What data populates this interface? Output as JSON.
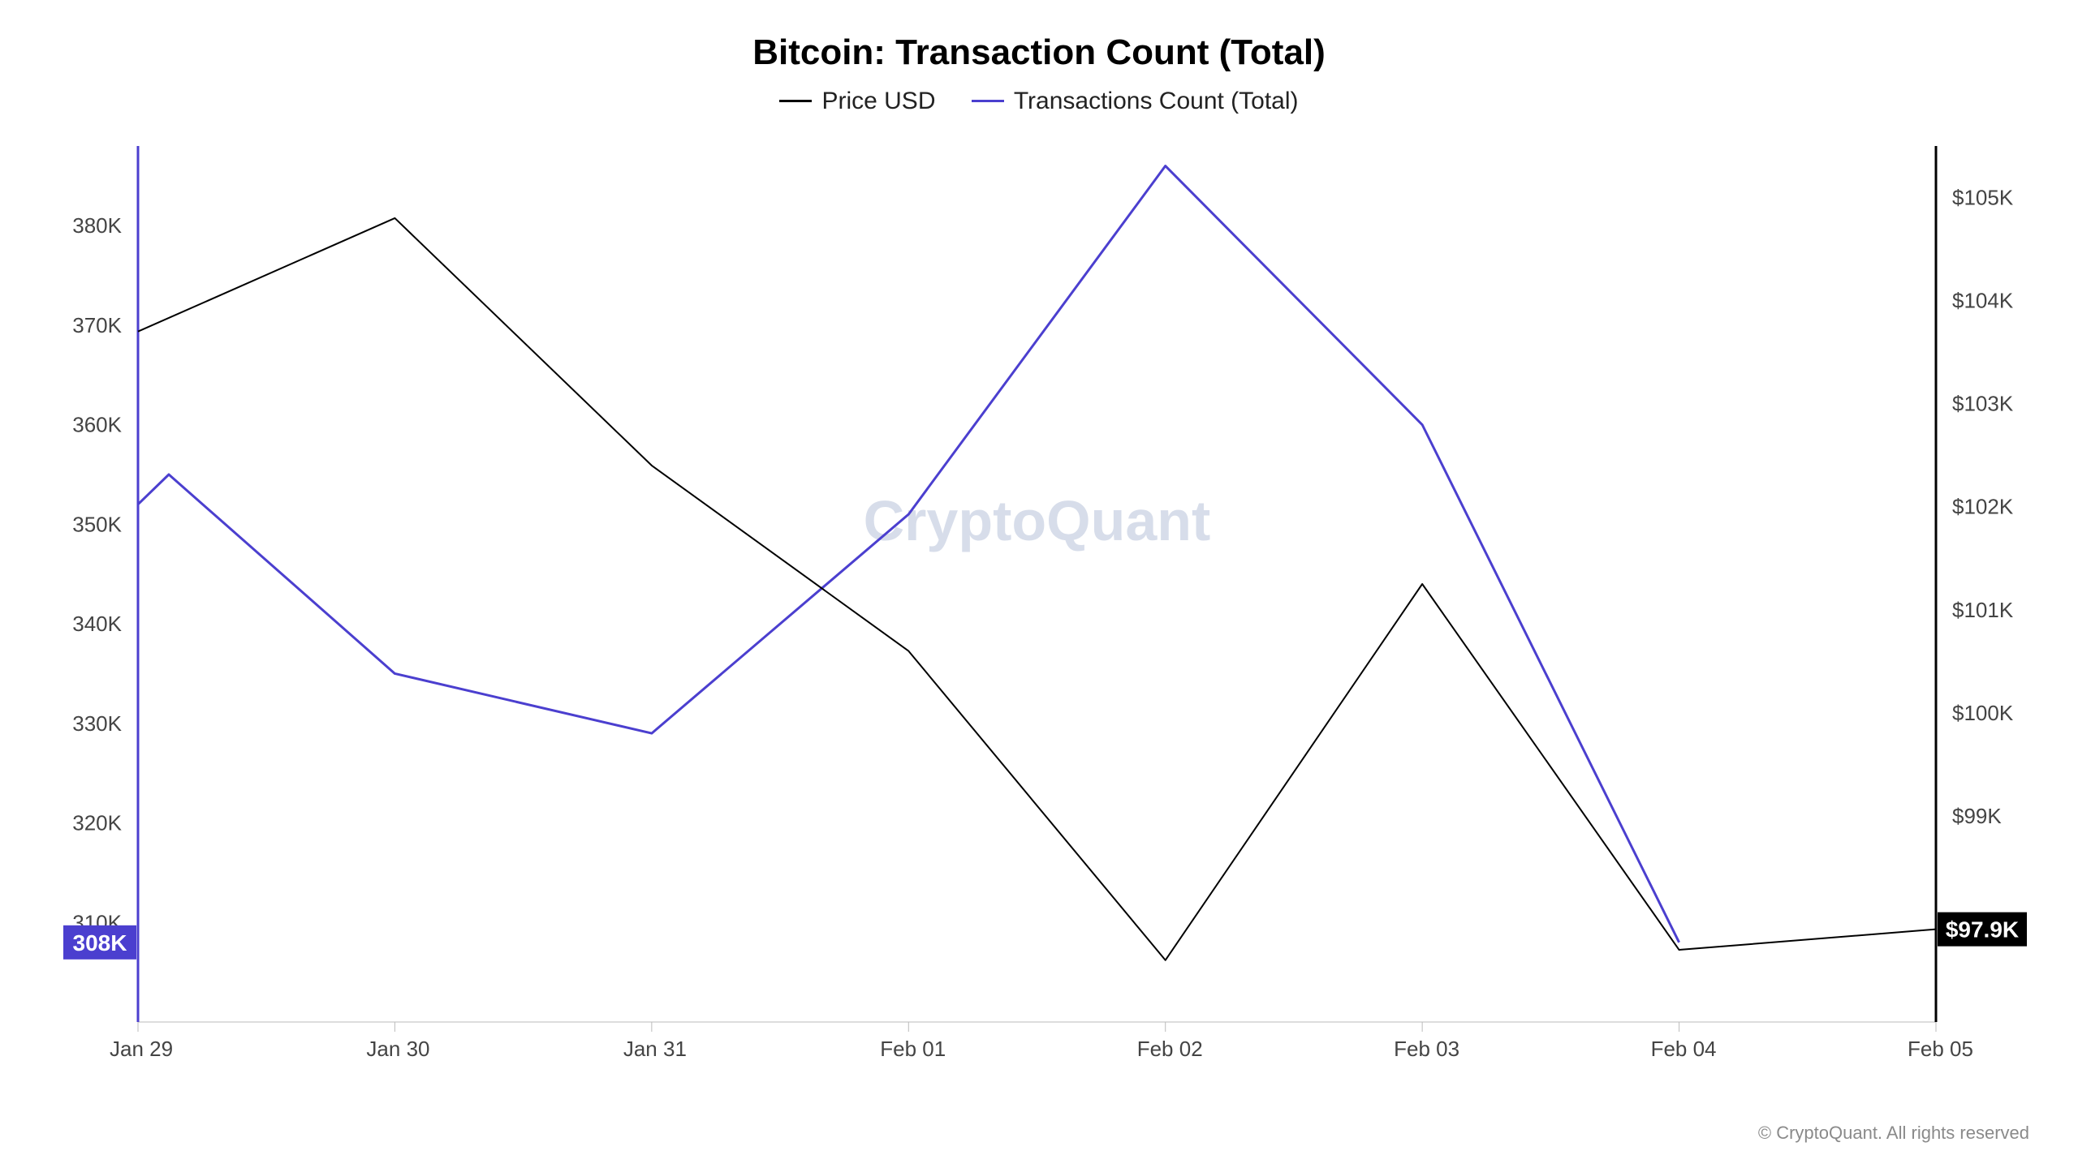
{
  "title": "Bitcoin: Transaction Count (Total)",
  "title_fontsize": 44,
  "legend": {
    "series1": {
      "label": "Price USD",
      "color": "#000000"
    },
    "series2": {
      "label": "Transactions Count (Total)",
      "color": "#4b3fcf"
    }
  },
  "watermark": "CryptoQuant",
  "attribution": "© CryptoQuant. All rights reserved",
  "chart": {
    "type": "line",
    "background_color": "#ffffff",
    "x": {
      "categories": [
        "Jan 29",
        "Jan 30",
        "Jan 31",
        "Feb 01",
        "Feb 02",
        "Feb 03",
        "Feb 04",
        "Feb 05"
      ]
    },
    "left_axis": {
      "label_suffix": "K",
      "ticks": [
        310,
        320,
        330,
        340,
        350,
        360,
        370,
        380
      ],
      "min": 300,
      "max": 388,
      "badge_value": "308K",
      "badge_bg": "#4b3fcf",
      "badge_fg": "#ffffff",
      "axis_color": "#4b3fcf",
      "axis_width": 3
    },
    "right_axis": {
      "label_prefix": "$",
      "label_suffix": "K",
      "ticks": [
        99,
        100,
        101,
        102,
        103,
        104,
        105
      ],
      "min": 97,
      "max": 105.5,
      "badge_value": "$97.9K",
      "badge_bg": "#000000",
      "badge_fg": "#ffffff",
      "axis_color": "#000000",
      "axis_width": 3
    },
    "series_price": {
      "color": "#000000",
      "width": 2,
      "axis": "right",
      "values": [
        103.7,
        104.8,
        102.4,
        100.6,
        97.6,
        101.25,
        97.7,
        97.9
      ]
    },
    "series_tx": {
      "color": "#4b3fcf",
      "width": 3,
      "axis": "left",
      "values_x": [
        0,
        0.12,
        1,
        2,
        3,
        4,
        5,
        6
      ],
      "values_y": [
        352,
        355,
        335,
        329,
        351,
        386,
        360,
        308
      ]
    },
    "grid_color": "#e8e8e8",
    "tick_color": "#bbbbbb"
  }
}
